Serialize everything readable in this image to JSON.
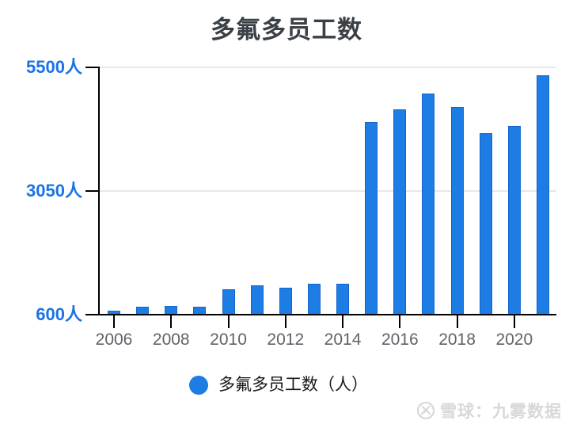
{
  "header": {
    "title": "多氟多员工数"
  },
  "chart_data": {
    "type": "bar",
    "title": "多氟多员工数",
    "series_name": "多氟多员工数（人）",
    "unit": "人",
    "categories": [
      "2006",
      "2007",
      "2008",
      "2009",
      "2010",
      "2011",
      "2012",
      "2013",
      "2014",
      "2015",
      "2016",
      "2017",
      "2018",
      "2019",
      "2020",
      "2021"
    ],
    "values": [
      680,
      750,
      770,
      760,
      1100,
      1180,
      1140,
      1220,
      1210,
      4420,
      4660,
      4980,
      4720,
      4200,
      4330,
      5350
    ],
    "ylim": [
      600,
      5500
    ],
    "y_ticks": [
      {
        "value": 600,
        "label": "600人"
      },
      {
        "value": 3050,
        "label": "3050人"
      },
      {
        "value": 5500,
        "label": "5500人"
      }
    ],
    "x_labeled_ticks": [
      "2006",
      "2008",
      "2010",
      "2012",
      "2014",
      "2016",
      "2018",
      "2020"
    ],
    "grid": true,
    "legend_position": "bottom"
  },
  "legend": {
    "items": [
      {
        "label": "多氟多员工数（人）",
        "marker": "circle",
        "color": "#1e7ce5"
      }
    ]
  },
  "watermark": {
    "icon": "xueqiu-logo-icon",
    "text": "雪球：九雾数据"
  },
  "colors": {
    "bar_fill": "#1e7ce5",
    "bar_border": "#1365cd",
    "axis_line": "#000000",
    "gridline": "#e7e7e7",
    "y_label_blue": "#1a73e8",
    "x_label_gray": "#5f6368",
    "title_color": "#3a4046",
    "legend_text": "#17181a",
    "watermark_gray": "#d8d8d8"
  }
}
